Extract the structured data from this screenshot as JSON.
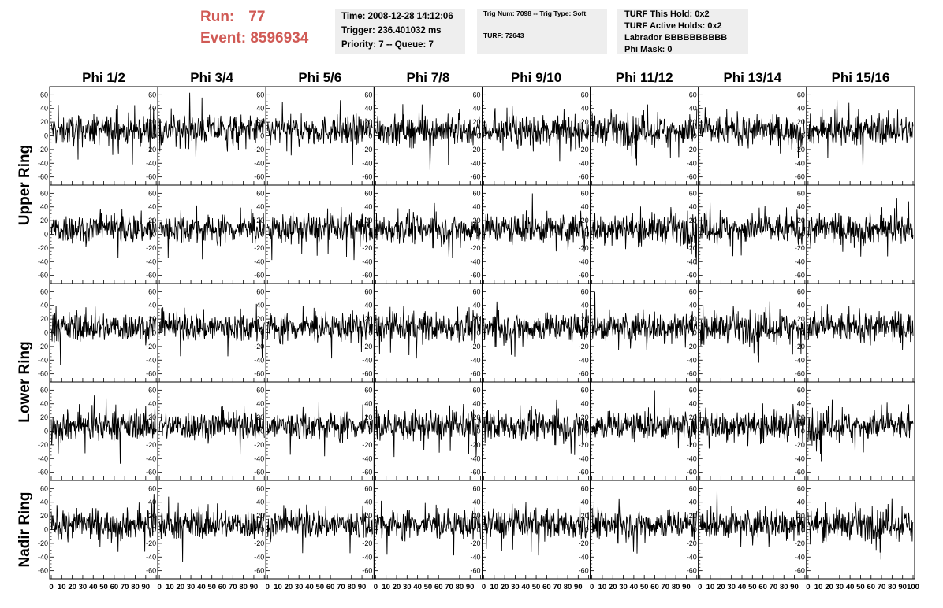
{
  "header": {
    "run_label": "Run:",
    "run_value": "77",
    "event_label": "Event:",
    "event_value": "8596934"
  },
  "info_box_1": {
    "time": "Time: 2008-12-28 14:12:06",
    "trigger": "Trigger: 236.401032 ms",
    "priority": "Priority: 7 -- Queue: 7"
  },
  "info_box_2": {
    "trig": "Trig Num: 7098 -- Trig Type: Soft",
    "turf": "TURF: 72643"
  },
  "info_box_3": {
    "this_hold": "TURF This Hold: 0x2",
    "active_holds": "TURF Active Holds: 0x2",
    "labrador": "Labrador BBBBBBBBBB",
    "phi_mask": "Phi Mask: 0"
  },
  "chart_data": {
    "type": "line",
    "columns": [
      "Phi 1/2",
      "Phi 3/4",
      "Phi 5/6",
      "Phi 7/8",
      "Phi 9/10",
      "Phi 11/12",
      "Phi 13/14",
      "Phi 15/16"
    ],
    "ring_labels": [
      "Upper Ring",
      "Lower Ring",
      "Nadir Ring"
    ],
    "rows": 5,
    "ylim": [
      -65,
      65
    ],
    "yticks": [
      -60,
      -40,
      -20,
      0,
      20,
      40,
      60
    ],
    "xlim": [
      0,
      100
    ],
    "xticks": [
      0,
      10,
      20,
      30,
      40,
      50,
      60,
      70,
      80,
      90,
      100
    ],
    "trace_color": "#000000",
    "approx_noise_amplitude": 12
  }
}
